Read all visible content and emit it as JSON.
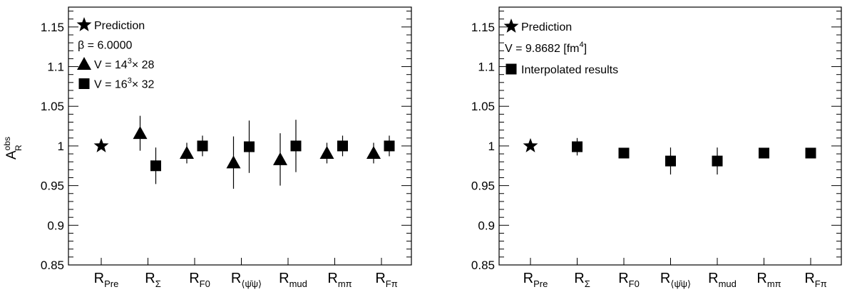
{
  "chart_data": [
    {
      "type": "scatter",
      "ylim": [
        0.85,
        1.175
      ],
      "yticks": [
        "0.85",
        "0.9",
        "0.95",
        "1",
        "1.05",
        "1.1",
        "1.15"
      ],
      "ylabel": {
        "main": "A",
        "sub": "R",
        "sup": "obs"
      },
      "categories": [
        {
          "main": "R",
          "sub": "Pre"
        },
        {
          "main": "R",
          "sub": "Σ"
        },
        {
          "main": "R",
          "sub": "F0"
        },
        {
          "main": "R",
          "sub": "⟨ψ̄ψ⟩"
        },
        {
          "main": "R",
          "sub": "mud"
        },
        {
          "main": "R",
          "sub": "mπ"
        },
        {
          "main": "R",
          "sub": "Fπ"
        }
      ],
      "legend": [
        {
          "marker": "star",
          "text": "Prediction"
        },
        {
          "marker": "none",
          "text": "β = 6.0000"
        },
        {
          "marker": "triangle",
          "text": "V = 14",
          "sup": "3",
          "tail": "× 28"
        },
        {
          "marker": "square",
          "text": "V = 16",
          "sup": "3",
          "tail": "× 32"
        }
      ],
      "series": [
        {
          "marker": "star",
          "points": [
            {
              "cat": 0,
              "y": 1.0,
              "err": 0
            }
          ]
        },
        {
          "marker": "triangle",
          "points": [
            {
              "cat": 1,
              "y": 1.016,
              "err": 0.022
            },
            {
              "cat": 2,
              "y": 0.991,
              "err": 0.013
            },
            {
              "cat": 3,
              "y": 0.979,
              "err": 0.033
            },
            {
              "cat": 4,
              "y": 0.983,
              "err": 0.033
            },
            {
              "cat": 5,
              "y": 0.991,
              "err": 0.013
            },
            {
              "cat": 6,
              "y": 0.991,
              "err": 0.013
            }
          ]
        },
        {
          "marker": "square",
          "points": [
            {
              "cat": 1,
              "y": 0.975,
              "err": 0.023
            },
            {
              "cat": 2,
              "y": 1.0,
              "err": 0.013
            },
            {
              "cat": 3,
              "y": 0.999,
              "err": 0.033
            },
            {
              "cat": 4,
              "y": 1.0,
              "err": 0.033
            },
            {
              "cat": 5,
              "y": 1.0,
              "err": 0.013
            },
            {
              "cat": 6,
              "y": 1.0,
              "err": 0.013
            }
          ]
        }
      ]
    },
    {
      "type": "scatter",
      "ylim": [
        0.85,
        1.175
      ],
      "yticks": [
        "0.85",
        "0.9",
        "0.95",
        "1",
        "1.05",
        "1.1",
        "1.15"
      ],
      "categories": [
        {
          "main": "R",
          "sub": "Pre"
        },
        {
          "main": "R",
          "sub": "Σ"
        },
        {
          "main": "R",
          "sub": "F0"
        },
        {
          "main": "R",
          "sub": "⟨ψ̄ψ⟩"
        },
        {
          "main": "R",
          "sub": "mud"
        },
        {
          "main": "R",
          "sub": "mπ"
        },
        {
          "main": "R",
          "sub": "Fπ"
        }
      ],
      "legend": [
        {
          "marker": "star",
          "text": "Prediction"
        },
        {
          "marker": "none",
          "text": "V = 9.8682 [fm",
          "sup": "4",
          "tail": "]"
        },
        {
          "marker": "square",
          "text": "Interpolated results"
        }
      ],
      "series": [
        {
          "marker": "star",
          "points": [
            {
              "cat": 0,
              "y": 1.0,
              "err": 0
            }
          ]
        },
        {
          "marker": "square",
          "points": [
            {
              "cat": 1,
              "y": 0.999,
              "err": 0.011
            },
            {
              "cat": 2,
              "y": 0.991,
              "err": 0.006
            },
            {
              "cat": 3,
              "y": 0.981,
              "err": 0.017
            },
            {
              "cat": 4,
              "y": 0.981,
              "err": 0.017
            },
            {
              "cat": 5,
              "y": 0.991,
              "err": 0.006
            },
            {
              "cat": 6,
              "y": 0.991,
              "err": 0.006
            }
          ]
        }
      ]
    }
  ]
}
